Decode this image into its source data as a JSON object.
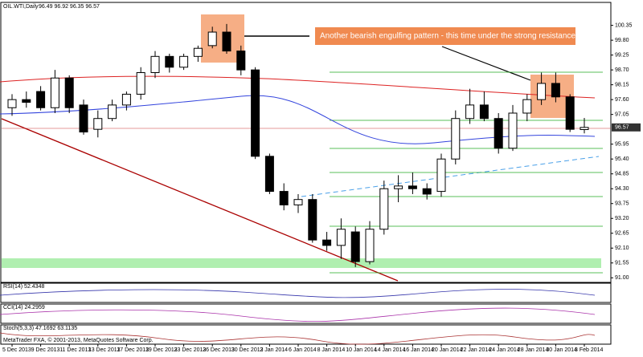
{
  "chart_data": {
    "type": "candlestick",
    "title": "OIL.WTI,Daily",
    "subtitle": "96.49 96.92 96.35 96.57",
    "annotation": "Another bearish engulfing pattern  - this time under the strong resistance zone.",
    "categories": [
      "5 Dec 2013",
      null,
      "9 Dec 2013",
      null,
      "11 Dec 2013",
      null,
      "13 Dec 2013",
      null,
      "17 Dec 2013",
      null,
      "19 Dec 2013",
      null,
      "23 Dec 2013",
      null,
      "26 Dec 2013",
      null,
      "30 Dec 2013",
      null,
      "2 Jan 2014",
      null,
      "6 Jan 2014",
      null,
      "8 Jan 2014",
      null,
      "10 Jan 2014",
      null,
      "14 Jan 2014",
      null,
      "16 Jan 2014",
      null,
      "20 Jan 2014",
      null,
      "22 Jan 2014",
      null,
      "24 Jan 2014",
      null,
      "28 Jan 2014",
      null,
      "30 Jan 2014",
      null,
      "3 Feb 2014"
    ],
    "open": [
      97.3,
      97.6,
      97.9,
      97.3,
      98.4,
      97.4,
      96.5,
      96.9,
      97.4,
      97.8,
      98.6,
      99.2,
      98.8,
      99.2,
      99.6,
      100.1,
      99.4,
      98.7,
      95.5,
      94.2,
      93.7,
      93.9,
      92.4,
      92.2,
      92.7,
      91.6,
      92.8,
      94.3,
      94.4,
      94.3,
      94.2,
      95.4,
      96.9,
      97.4,
      96.9,
      95.8,
      97.1,
      97.6,
      98.2,
      97.7,
      96.49
    ],
    "high": [
      97.8,
      97.9,
      98.1,
      98.7,
      98.5,
      97.6,
      97.2,
      97.6,
      97.9,
      98.8,
      99.4,
      99.3,
      99.3,
      99.6,
      100.3,
      100.4,
      99.6,
      98.8,
      95.6,
      94.5,
      94.1,
      94.1,
      92.7,
      93.2,
      92.9,
      93.1,
      94.6,
      94.8,
      94.9,
      94.5,
      95.6,
      97.2,
      98.0,
      97.9,
      97.1,
      97.4,
      97.8,
      98.6,
      98.6,
      97.8,
      96.92
    ],
    "low": [
      97.0,
      97.3,
      97.2,
      97.1,
      97.1,
      96.3,
      96.2,
      96.8,
      97.2,
      97.6,
      98.4,
      98.6,
      98.7,
      99.0,
      99.5,
      99.3,
      98.5,
      95.4,
      94.1,
      93.5,
      93.4,
      92.3,
      92.0,
      91.7,
      91.4,
      91.5,
      92.6,
      93.8,
      94.1,
      93.9,
      94.0,
      95.2,
      96.7,
      96.8,
      95.6,
      95.7,
      96.8,
      97.4,
      97.5,
      96.4,
      96.35
    ],
    "close": [
      97.6,
      97.5,
      97.3,
      98.4,
      97.3,
      96.4,
      96.9,
      97.4,
      97.8,
      98.6,
      99.2,
      98.8,
      99.2,
      99.5,
      100.1,
      99.4,
      98.7,
      95.5,
      94.2,
      93.7,
      93.9,
      92.4,
      92.2,
      92.8,
      91.6,
      92.8,
      94.3,
      94.4,
      94.3,
      94.1,
      95.4,
      96.9,
      97.4,
      96.9,
      95.8,
      97.1,
      97.6,
      98.2,
      97.7,
      96.5,
      96.57
    ],
    "ylim": [
      90.83,
      101.2
    ],
    "yticks": [
      {
        "value": 100.35,
        "label": "100.35"
      },
      {
        "value": 99.8,
        "label": "99.80"
      },
      {
        "value": 99.25,
        "label": "99.25"
      },
      {
        "value": 98.7,
        "label": "98.70"
      },
      {
        "value": 98.15,
        "label": "98.15"
      },
      {
        "value": 97.6,
        "label": "97.60"
      },
      {
        "value": 97.05,
        "label": "97.05"
      },
      {
        "value": 95.95,
        "label": "95.95"
      },
      {
        "value": 95.4,
        "label": "95.40"
      },
      {
        "value": 94.85,
        "label": "94.85"
      },
      {
        "value": 94.3,
        "label": "94.30"
      },
      {
        "value": 93.75,
        "label": "93.75"
      },
      {
        "value": 93.2,
        "label": "93.20"
      },
      {
        "value": 92.65,
        "label": "92.65"
      },
      {
        "value": 92.1,
        "label": "92.10"
      },
      {
        "value": 91.55,
        "label": "91.55"
      },
      {
        "value": 91.0,
        "label": "91.00"
      }
    ],
    "indicators": [
      "RSI(14) 52.4348",
      "CCI(14) 24.2959",
      "Stoch(5,3,3) 47.1692 63.1135"
    ],
    "copyright": "MetaTrader FXA, © 2001-2013, MetaQuotes Software Corp."
  }
}
